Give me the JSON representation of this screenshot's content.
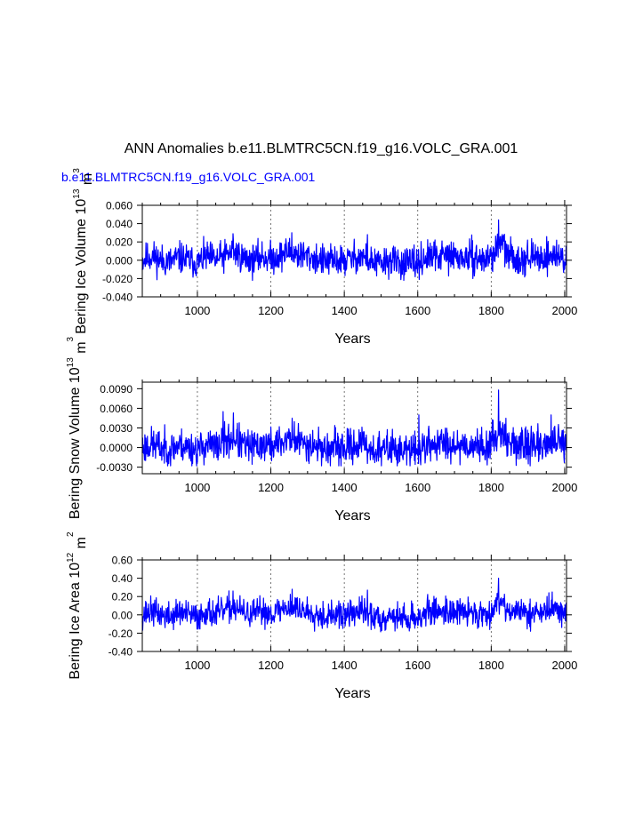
{
  "page": {
    "title": "ANN Anomalies b.e11.BLMTRC5CN.f19_g16.VOLC_GRA.001",
    "case_label": "b.e11.BLMTRC5CN.f19_g16.VOLC_GRA.001",
    "colors": {
      "series": "#0000ff",
      "axes": "#000000",
      "grid": "#555555"
    }
  },
  "chart_data": [
    {
      "type": "line",
      "title": "ANN Anomalies b.e11.BLMTRC5CN.f19_g16.VOLC_GRA.001",
      "legend": "b.e11.BLMTRC5CN.f19_g16.VOLC_GRA.001",
      "xlabel": "Years",
      "ylabel": "Bering Ice Volume 10",
      "ylabel_exp": "13",
      "ylabel_unit": "m",
      "ylabel_unit_exp": "3",
      "xlim": [
        850,
        2005
      ],
      "ylim": [
        -0.04,
        0.06
      ],
      "xticks": [
        1000,
        1200,
        1400,
        1600,
        1800,
        2000
      ],
      "xtick_labels": [
        "1000",
        "1200",
        "1400",
        "1600",
        "1800",
        "2000"
      ],
      "yticks": [
        -0.04,
        -0.02,
        0.0,
        0.02,
        0.04,
        0.06
      ],
      "ytick_labels": [
        "-0.040",
        "-0.020",
        "0.000",
        "0.020",
        "0.040",
        "0.060"
      ],
      "grid_x": true,
      "seed": 11,
      "amplitude": 0.0085,
      "clip": [
        -0.022,
        0.032
      ],
      "peaks": [
        {
          "year": 1820,
          "value": 0.044
        },
        {
          "year": 1257,
          "value": 0.03
        },
        {
          "year": 1097,
          "value": 0.029
        },
        {
          "year": 1463,
          "value": 0.028
        }
      ],
      "x": [
        850,
        875,
        900,
        925,
        950,
        975,
        1000,
        1025,
        1050,
        1075,
        1100,
        1125,
        1150,
        1175,
        1200,
        1225,
        1250,
        1275,
        1300,
        1325,
        1350,
        1375,
        1400,
        1425,
        1450,
        1475,
        1500,
        1525,
        1550,
        1575,
        1600,
        1625,
        1650,
        1675,
        1700,
        1725,
        1750,
        1775,
        1800,
        1825,
        1850,
        1875,
        1900,
        1925,
        1950,
        1975,
        2005
      ],
      "values": [
        0.0,
        0.005,
        0.0,
        -0.002,
        0.003,
        0.0,
        -0.003,
        0.004,
        0.0,
        0.005,
        0.01,
        0.002,
        0.0,
        0.004,
        0.002,
        0.005,
        0.01,
        0.006,
        0.004,
        0.002,
        -0.002,
        0.0,
        -0.001,
        0.003,
        0.004,
        -0.002,
        -0.004,
        0.0,
        -0.003,
        -0.004,
        -0.003,
        0.003,
        0.004,
        0.005,
        0.004,
        0.002,
        0.003,
        0.0,
        0.004,
        0.02,
        0.004,
        0.002,
        0.003,
        0.002,
        0.004,
        0.006,
        0.0
      ]
    },
    {
      "type": "line",
      "xlabel": "Years",
      "ylabel": "Bering Snow Volume 10",
      "ylabel_exp": "13",
      "ylabel_unit": "m",
      "ylabel_unit_exp": "3",
      "xlim": [
        850,
        2005
      ],
      "ylim": [
        -0.004,
        0.01
      ],
      "xticks": [
        1000,
        1200,
        1400,
        1600,
        1800,
        2000
      ],
      "xtick_labels": [
        "1000",
        "1200",
        "1400",
        "1600",
        "1800",
        "2000"
      ],
      "yticks": [
        -0.003,
        0.0,
        0.003,
        0.006,
        0.009
      ],
      "ytick_labels": [
        "-0.0030",
        "0.0000",
        "0.0030",
        "0.0060",
        "0.0090"
      ],
      "grid_x": true,
      "seed": 23,
      "amplitude": 0.0013,
      "clip": [
        -0.0028,
        0.0055
      ],
      "peaks": [
        {
          "year": 1820,
          "value": 0.0088
        },
        {
          "year": 1070,
          "value": 0.0055
        },
        {
          "year": 1098,
          "value": 0.0053
        },
        {
          "year": 1258,
          "value": 0.0045
        },
        {
          "year": 1603,
          "value": 0.005
        },
        {
          "year": 1963,
          "value": 0.005
        }
      ],
      "x": [
        850,
        875,
        900,
        925,
        950,
        975,
        1000,
        1025,
        1050,
        1075,
        1100,
        1125,
        1150,
        1175,
        1200,
        1225,
        1250,
        1275,
        1300,
        1325,
        1350,
        1375,
        1400,
        1425,
        1450,
        1475,
        1500,
        1525,
        1550,
        1575,
        1600,
        1625,
        1650,
        1675,
        1700,
        1725,
        1750,
        1775,
        1800,
        1825,
        1850,
        1875,
        1900,
        1925,
        1950,
        1975,
        2005
      ],
      "values": [
        0.0,
        0.0005,
        0.0,
        -0.0003,
        0.0004,
        0.0,
        -0.0004,
        0.0005,
        0.0,
        0.0008,
        0.0015,
        0.0003,
        0.0,
        0.0005,
        0.0003,
        0.0007,
        0.0015,
        0.0009,
        0.0006,
        0.0003,
        -0.0003,
        0.0,
        -0.0002,
        0.0004,
        0.0006,
        -0.0003,
        -0.0005,
        0.0,
        -0.0004,
        -0.0005,
        -0.0004,
        0.0004,
        0.0006,
        0.0007,
        0.0006,
        0.0003,
        0.0004,
        0.0,
        0.0006,
        0.003,
        0.0006,
        0.0003,
        0.0004,
        0.0003,
        0.0006,
        0.0008,
        0.0
      ]
    },
    {
      "type": "line",
      "xlabel": "Years",
      "ylabel": "Bering Ice Area 10",
      "ylabel_exp": "12",
      "ylabel_unit": "m",
      "ylabel_unit_exp": "2",
      "xlim": [
        850,
        2005
      ],
      "ylim": [
        -0.4,
        0.6
      ],
      "xticks": [
        1000,
        1200,
        1400,
        1600,
        1800,
        2000
      ],
      "xtick_labels": [
        "1000",
        "1200",
        "1400",
        "1600",
        "1800",
        "2000"
      ],
      "yticks": [
        -0.4,
        -0.2,
        0.0,
        0.2,
        0.4,
        0.6
      ],
      "ytick_labels": [
        "-0.40",
        "-0.20",
        "0.00",
        "0.20",
        "0.40",
        "0.60"
      ],
      "grid_x": true,
      "seed": 37,
      "amplitude": 0.075,
      "clip": [
        -0.22,
        0.27
      ],
      "peaks": [
        {
          "year": 1820,
          "value": 0.4
        },
        {
          "year": 1258,
          "value": 0.28
        },
        {
          "year": 1097,
          "value": 0.26
        },
        {
          "year": 1463,
          "value": 0.27
        },
        {
          "year": 1966,
          "value": 0.25
        }
      ],
      "x": [
        850,
        875,
        900,
        925,
        950,
        975,
        1000,
        1025,
        1050,
        1075,
        1100,
        1125,
        1150,
        1175,
        1200,
        1225,
        1250,
        1275,
        1300,
        1325,
        1350,
        1375,
        1400,
        1425,
        1450,
        1475,
        1500,
        1525,
        1550,
        1575,
        1600,
        1625,
        1650,
        1675,
        1700,
        1725,
        1750,
        1775,
        1800,
        1825,
        1850,
        1875,
        1900,
        1925,
        1950,
        1975,
        2005
      ],
      "values": [
        0.0,
        0.04,
        0.0,
        -0.02,
        0.03,
        0.0,
        -0.03,
        0.04,
        0.0,
        0.05,
        0.09,
        0.02,
        0.0,
        0.04,
        0.02,
        0.05,
        0.09,
        0.06,
        0.04,
        0.02,
        -0.02,
        0.0,
        -0.01,
        0.03,
        0.04,
        -0.02,
        -0.04,
        0.0,
        -0.03,
        -0.04,
        -0.03,
        0.03,
        0.04,
        0.05,
        0.04,
        0.02,
        0.03,
        0.0,
        0.04,
        0.18,
        0.04,
        0.02,
        0.03,
        0.02,
        0.04,
        0.06,
        0.0
      ]
    }
  ]
}
